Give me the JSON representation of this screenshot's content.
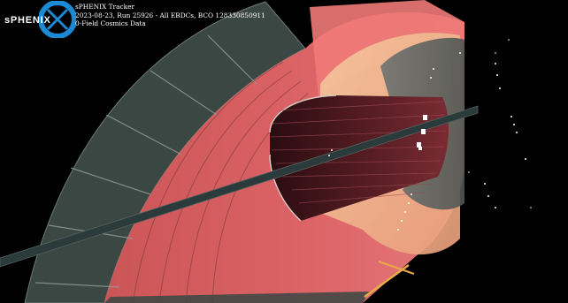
{
  "image": {
    "logo_text": "sPHENIX",
    "caption_lines": [
      "sPHENIX Tracker",
      "2023-08-23, Run 25926 - All EBDCs, BCO 128330850911",
      "0-Field Cosmics Data"
    ]
  },
  "colors": {
    "background": "#000000",
    "barrel_red": "#e0605f",
    "barrel_dark": "#3d1417",
    "tpc_cream": "#f0b58e",
    "frame_grey": "#5d6b66",
    "rod_slate": "#2b3a3a",
    "logo_blue": "#1a8ad4",
    "track_hits": "#ffffff",
    "highlight_orange": "#e9a94a"
  }
}
